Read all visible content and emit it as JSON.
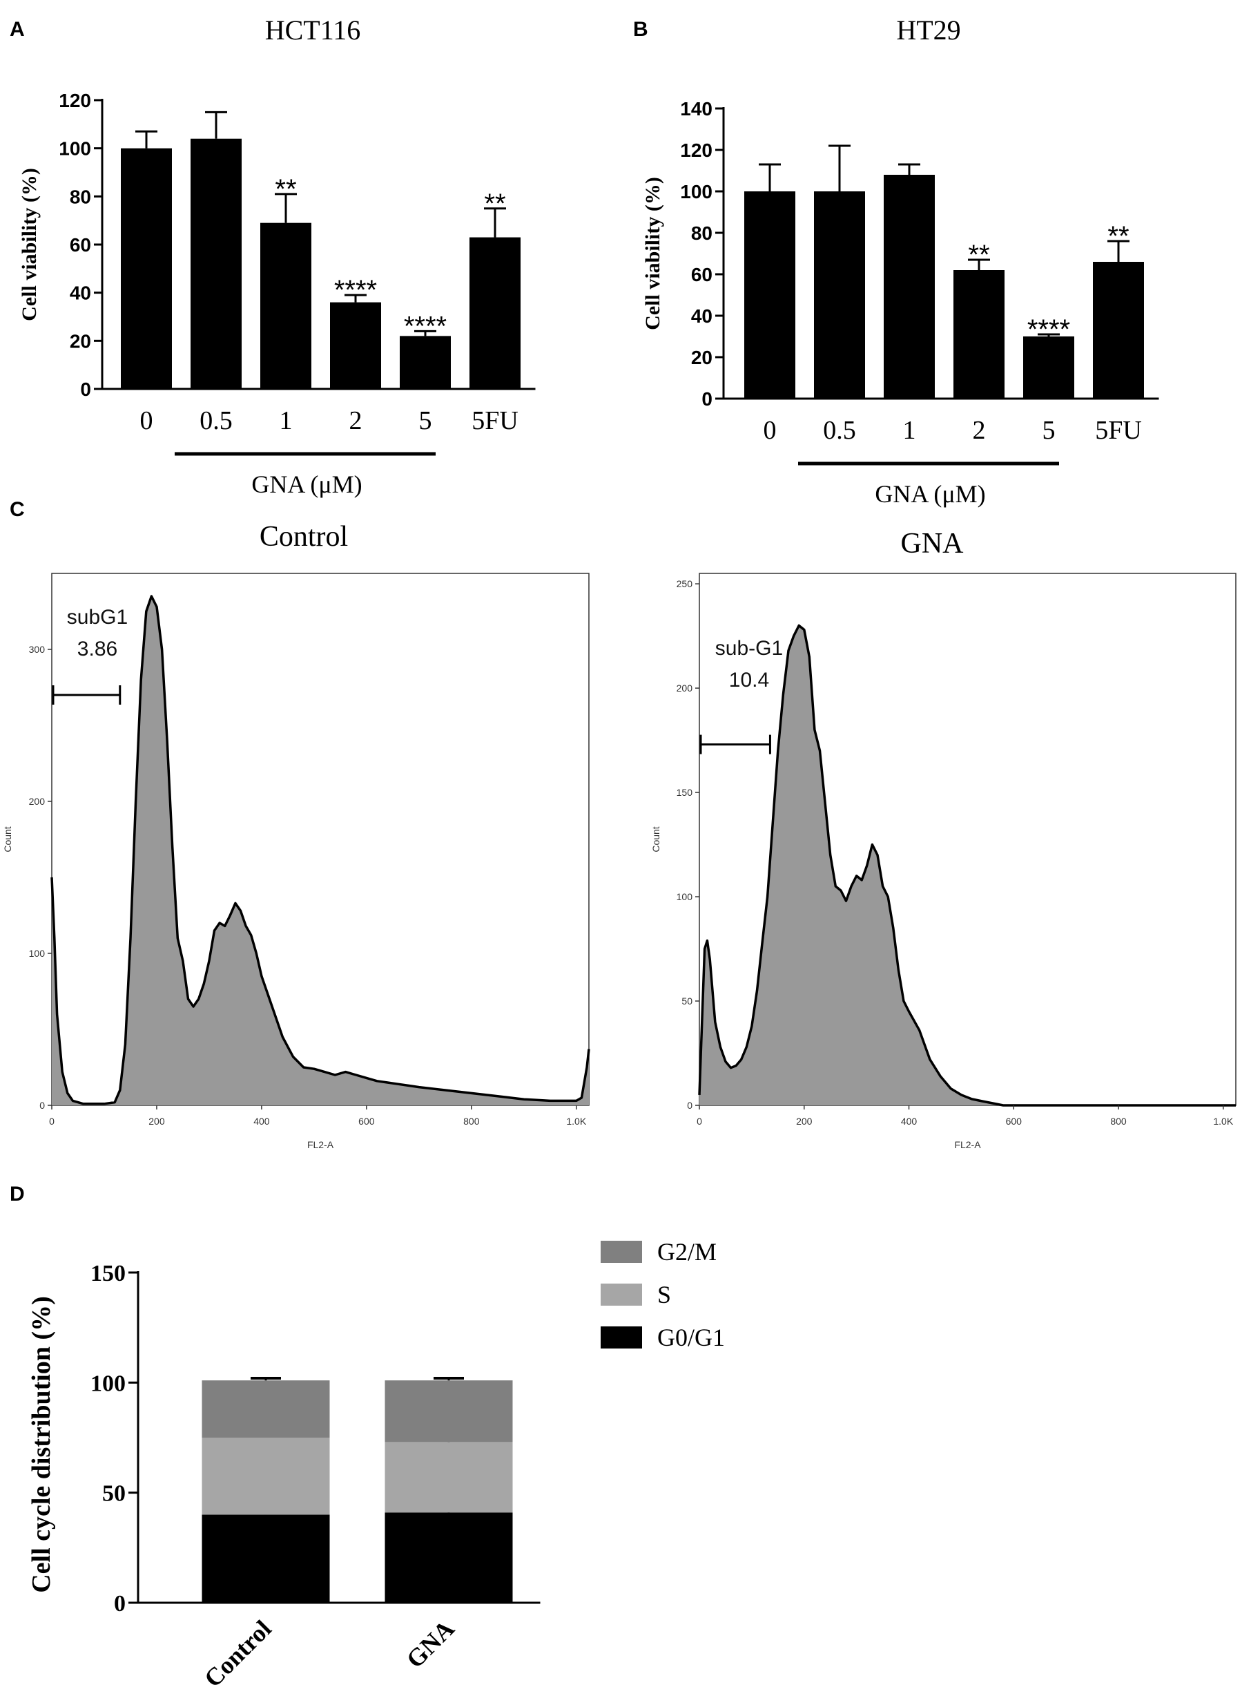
{
  "chart_data": [
    {
      "panel": "A",
      "type": "bar",
      "title": "HCT116",
      "ylabel": "Cell viability (%)",
      "xlabel": "GNA (μM)",
      "categories": [
        "0",
        "0.5",
        "1",
        "2",
        "5",
        "5FU"
      ],
      "values": [
        100,
        104,
        69,
        36,
        22,
        63
      ],
      "errors": [
        7,
        11,
        12,
        3,
        2,
        12
      ],
      "significance": [
        "",
        "",
        "**",
        "****",
        "****",
        "**"
      ],
      "ylim": [
        0,
        120
      ],
      "yticks": [
        "0",
        "20",
        "40",
        "60",
        "80",
        "100",
        "120"
      ],
      "color": "#000000"
    },
    {
      "panel": "B",
      "type": "bar",
      "title": "HT29",
      "ylabel": "Cell viability (%)",
      "xlabel": "GNA (μM)",
      "categories": [
        "0",
        "0.5",
        "1",
        "2",
        "5",
        "5FU"
      ],
      "values": [
        100,
        100,
        108,
        62,
        30,
        66
      ],
      "errors": [
        13,
        22,
        5,
        5,
        1,
        10
      ],
      "significance": [
        "",
        "",
        "",
        "**",
        "****",
        "**"
      ],
      "ylim": [
        0,
        140
      ],
      "yticks": [
        "0",
        "20",
        "40",
        "60",
        "80",
        "100",
        "120",
        "140"
      ],
      "color": "#000000"
    },
    {
      "panel": "C",
      "type": "area",
      "title": "Control",
      "xlabel": "FL2-A",
      "ylabel": "Count",
      "xlim": [
        0,
        1024
      ],
      "ylim": [
        0,
        350
      ],
      "xticks": [
        "0",
        "200",
        "400",
        "600",
        "800",
        "1.0K"
      ],
      "xtick_values": [
        0,
        200,
        400,
        600,
        800,
        1000
      ],
      "yticks": [
        "0",
        "100",
        "200",
        "300"
      ],
      "ytick_values": [
        0,
        100,
        200,
        300
      ],
      "gate_label": "subG1",
      "gate_value": "3.86",
      "gate_range": [
        0,
        130
      ],
      "gate_level": 270,
      "x": [
        0,
        5,
        10,
        20,
        30,
        40,
        50,
        60,
        80,
        100,
        120,
        130,
        140,
        150,
        160,
        170,
        180,
        190,
        200,
        210,
        220,
        230,
        240,
        250,
        260,
        270,
        280,
        290,
        300,
        310,
        320,
        330,
        340,
        350,
        360,
        370,
        380,
        390,
        400,
        410,
        420,
        430,
        440,
        460,
        480,
        500,
        520,
        540,
        560,
        580,
        600,
        620,
        640,
        660,
        680,
        700,
        750,
        800,
        850,
        900,
        950,
        1000,
        1010,
        1020,
        1024
      ],
      "y": [
        150,
        110,
        60,
        22,
        8,
        3,
        2,
        1,
        1,
        1,
        2,
        10,
        40,
        110,
        200,
        280,
        325,
        335,
        328,
        300,
        240,
        170,
        110,
        95,
        70,
        65,
        70,
        80,
        95,
        115,
        120,
        118,
        125,
        133,
        128,
        118,
        112,
        100,
        85,
        75,
        65,
        55,
        45,
        32,
        25,
        24,
        22,
        20,
        22,
        20,
        18,
        16,
        15,
        14,
        13,
        12,
        10,
        8,
        6,
        4,
        3,
        3,
        5,
        25,
        37
      ],
      "fill": "#999999"
    },
    {
      "panel": "C",
      "type": "area",
      "title": "GNA",
      "xlabel": "FL2-A",
      "ylabel": "Count",
      "xlim": [
        0,
        1024
      ],
      "ylim": [
        0,
        255
      ],
      "xticks": [
        "0",
        "200",
        "400",
        "600",
        "800",
        "1.0K"
      ],
      "xtick_values": [
        0,
        200,
        400,
        600,
        800,
        1000
      ],
      "yticks": [
        "0",
        "50",
        "100",
        "150",
        "200",
        "250"
      ],
      "ytick_values": [
        0,
        50,
        100,
        150,
        200,
        250
      ],
      "gate_label": "sub-G1",
      "gate_value": "10.4",
      "gate_range": [
        0,
        135
      ],
      "gate_level": 173,
      "x": [
        0,
        5,
        10,
        15,
        20,
        25,
        30,
        40,
        50,
        60,
        70,
        80,
        90,
        100,
        110,
        120,
        130,
        140,
        150,
        160,
        170,
        180,
        190,
        200,
        210,
        220,
        230,
        240,
        250,
        260,
        270,
        280,
        290,
        300,
        310,
        320,
        330,
        340,
        350,
        360,
        370,
        380,
        390,
        400,
        420,
        440,
        460,
        480,
        500,
        520,
        540,
        560,
        580,
        600,
        620,
        640,
        700,
        800,
        900,
        1000,
        1024
      ],
      "y": [
        5,
        40,
        75,
        79,
        70,
        55,
        40,
        28,
        21,
        18,
        19,
        22,
        28,
        38,
        55,
        78,
        100,
        135,
        170,
        197,
        218,
        225,
        230,
        228,
        215,
        180,
        170,
        145,
        120,
        105,
        103,
        98,
        105,
        110,
        108,
        115,
        125,
        120,
        105,
        100,
        85,
        65,
        50,
        45,
        36,
        22,
        14,
        8,
        5,
        3,
        2,
        1,
        0,
        0,
        0,
        0,
        0,
        0,
        0,
        0,
        0
      ],
      "fill": "#999999"
    },
    {
      "panel": "D",
      "type": "bar",
      "stacked": true,
      "ylabel": "Cell cycle distribution (%)",
      "categories": [
        "Control",
        "GNA"
      ],
      "series": [
        {
          "name": "G0/G1",
          "values": [
            40,
            41
          ],
          "errors": [
            4,
            1
          ],
          "color": "#000000"
        },
        {
          "name": "S",
          "values": [
            35,
            32
          ],
          "errors": [
            2,
            2
          ],
          "color": "#a6a6a6"
        },
        {
          "name": "G2/M",
          "values": [
            26,
            28
          ],
          "errors": [
            1,
            1
          ],
          "color": "#808080"
        }
      ],
      "legend_order": [
        "G2/M",
        "S",
        "G0/G1"
      ],
      "ylim": [
        0,
        150
      ],
      "yticks": [
        "0",
        "50",
        "100",
        "150"
      ]
    }
  ],
  "panels": {
    "a": "A",
    "b": "B",
    "c": "C",
    "d": "D"
  }
}
